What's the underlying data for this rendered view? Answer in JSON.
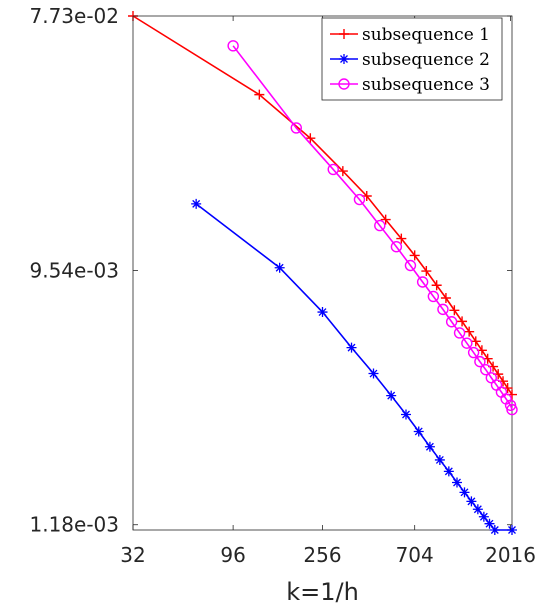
{
  "chart_data": {
    "type": "line",
    "xlabel": "k=1/h",
    "ylabel": "",
    "x_scale": "log",
    "y_scale": "log",
    "xlim": [
      32,
      2048
    ],
    "ylim": [
      0.00113,
      0.0773
    ],
    "x_ticks": [
      32,
      96,
      256,
      704,
      2016
    ],
    "x_tick_labels": [
      "32",
      "96",
      "256",
      "704",
      "2016"
    ],
    "y_ticks": [
      0.00118,
      0.00954,
      0.0773
    ],
    "y_tick_labels": [
      "1.18e-03",
      "9.54e-03",
      "7.73e-02"
    ],
    "grid": false,
    "legend_position": "top-right",
    "series": [
      {
        "name": "subsequence 1",
        "color": "#ff0000",
        "marker": "plus",
        "x": [
          32,
          128,
          224,
          320,
          416,
          512,
          608,
          704,
          800,
          896,
          992,
          1088,
          1184,
          1280,
          1376,
          1472,
          1568,
          1664,
          1760,
          1856,
          1952,
          2048
        ],
        "y": [
          0.0773,
          0.0405,
          0.0283,
          0.0216,
          0.0176,
          0.0145,
          0.0124,
          0.0108,
          0.0095,
          0.00845,
          0.00761,
          0.00688,
          0.00628,
          0.00577,
          0.00533,
          0.00495,
          0.00462,
          0.00433,
          0.00407,
          0.00384,
          0.00363,
          0.00344
        ]
      },
      {
        "name": "subsequence 2",
        "color": "#0000ff",
        "marker": "asterisk",
        "x": [
          64,
          160,
          256,
          352,
          448,
          544,
          640,
          736,
          832,
          928,
          1024,
          1120,
          1216,
          1312,
          1408,
          1504,
          1600,
          1696,
          1792,
          1888,
          1984,
          2048
        ],
        "y": [
          0.0165,
          0.00976,
          0.00678,
          0.00506,
          0.00409,
          0.00341,
          0.00292,
          0.00254,
          0.00224,
          0.00201,
          0.00183,
          0.00167,
          0.00154,
          0.00143,
          0.00134,
          0.00126,
          0.00119,
          0.00113,
          0.00107,
          0.00102,
          0.00098,
          0.00113
        ]
      },
      {
        "name": "subsequence 3",
        "color": "#ff00ff",
        "marker": "circle",
        "x": [
          96,
          192,
          288,
          384,
          480,
          576,
          672,
          768,
          864,
          960,
          1056,
          1152,
          1248,
          1344,
          1440,
          1536,
          1632,
          1728,
          1824,
          1920,
          2016,
          2048
        ],
        "y": [
          0.0605,
          0.0308,
          0.0219,
          0.0171,
          0.0138,
          0.0116,
          0.00994,
          0.00868,
          0.00771,
          0.00693,
          0.00626,
          0.00571,
          0.00525,
          0.00486,
          0.00451,
          0.00422,
          0.00395,
          0.00372,
          0.00351,
          0.00332,
          0.00315,
          0.00304
        ]
      }
    ]
  }
}
